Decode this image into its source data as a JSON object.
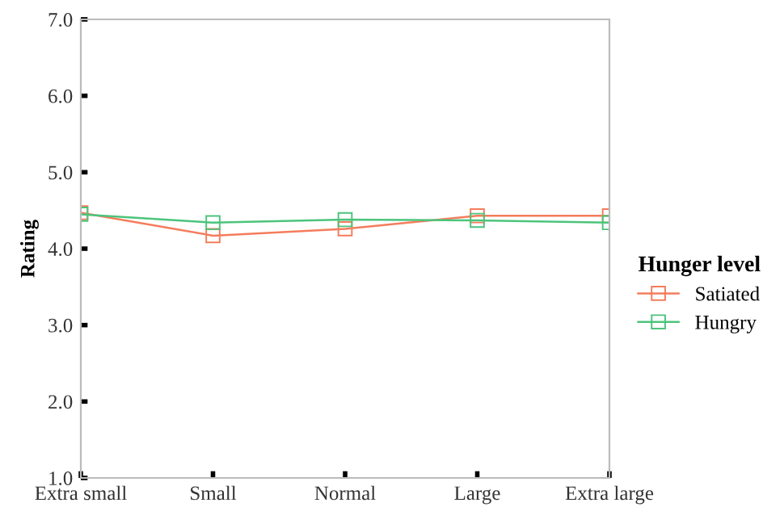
{
  "chart_data": {
    "type": "line",
    "ylabel": "Rating",
    "legend_title": "Hunger level",
    "categories": [
      "Extra small",
      "Small",
      "Normal",
      "Large",
      "Extra large"
    ],
    "series": [
      {
        "name": "Satiated",
        "color": "#f47c5c",
        "values": [
          4.47,
          4.17,
          4.26,
          4.43,
          4.43
        ]
      },
      {
        "name": "Hungry",
        "color": "#4cc47c",
        "values": [
          4.45,
          4.34,
          4.38,
          4.37,
          4.34
        ]
      }
    ],
    "ylim": [
      1.0,
      7.0
    ],
    "yticks": [
      {
        "value": 1,
        "label": "1.0"
      },
      {
        "value": 2,
        "label": "2.0"
      },
      {
        "value": 3,
        "label": "3.0"
      },
      {
        "value": 4,
        "label": "4.0"
      },
      {
        "value": 5,
        "label": "5.0"
      },
      {
        "value": 6,
        "label": "6.0"
      },
      {
        "value": 7,
        "label": "7.0"
      }
    ],
    "grid": false,
    "legend": "right",
    "marker": "square",
    "line_style": "solid"
  }
}
